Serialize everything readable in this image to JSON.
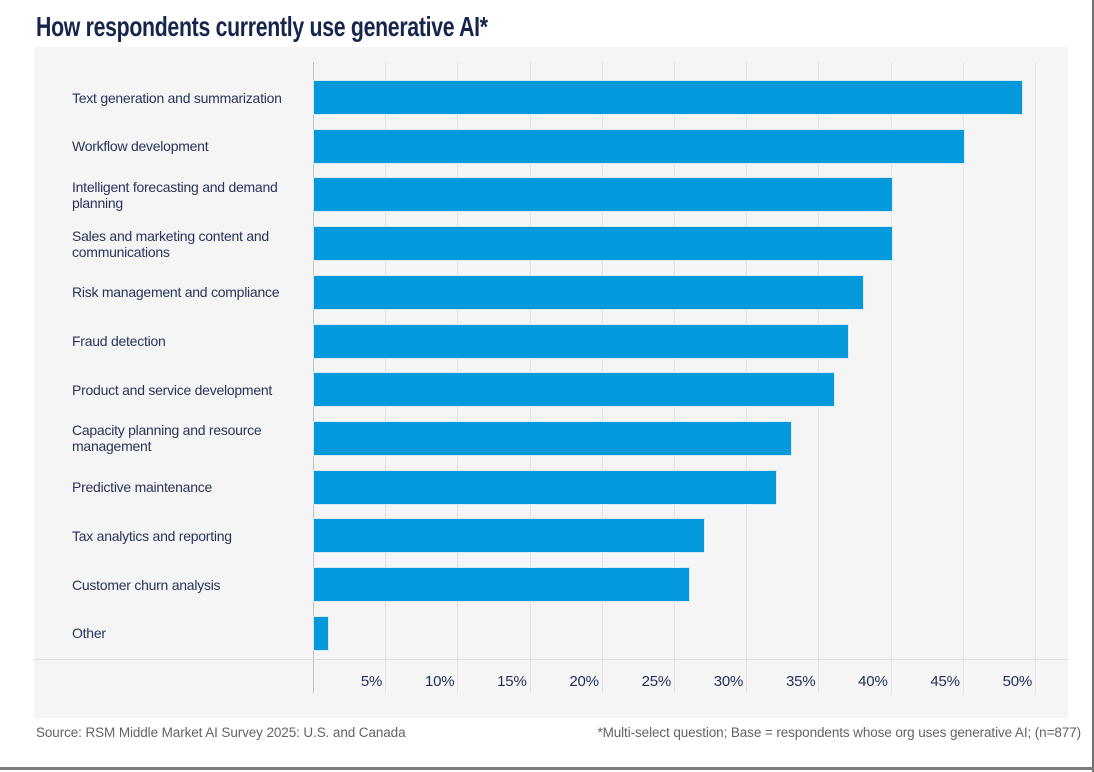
{
  "page": {
    "title": "How respondents currently use generative AI*",
    "footer": {
      "source": "Source: RSM Middle Market AI Survey 2025: U.S. and Canada",
      "note": "*Multi-select question; Base = respondents whose org uses generative AI; (n=877)"
    }
  },
  "colors": {
    "bar_blue": "#0499DB",
    "title_navy": "#15254C",
    "label_navy": "#28335A",
    "panel_gray": "#F5F5F6",
    "gridline_gray": "#E4E4E8",
    "axis_gray": "#C0C1C6",
    "footer_gray": "#606368",
    "page_border_gray": "#717171"
  },
  "chart_data": {
    "type": "bar",
    "orientation": "horizontal",
    "title": "How respondents currently use generative AI*",
    "categories": [
      "Text generation and summarization",
      "Workflow development",
      "Intelligent forecasting and demand planning",
      "Sales and marketing content and communications",
      "Risk management and compliance",
      "Fraud detection",
      "Product and service development",
      "Capacity planning and resource management",
      "Predictive maintenance",
      "Tax analytics and reporting",
      "Customer churn analysis",
      "Other"
    ],
    "values": [
      49,
      45,
      40,
      40,
      38,
      37,
      36,
      33,
      32,
      27,
      26,
      1
    ],
    "unit": "%",
    "xlabel": "",
    "ylabel": "",
    "xlim": [
      0,
      52
    ],
    "x_ticks": [
      "5%",
      "10%",
      "15%",
      "20%",
      "25%",
      "30%",
      "35%",
      "40%",
      "45%",
      "50%"
    ],
    "x_tick_values": [
      5,
      10,
      15,
      20,
      25,
      30,
      35,
      40,
      45,
      50
    ],
    "grid": true,
    "legend": false
  }
}
